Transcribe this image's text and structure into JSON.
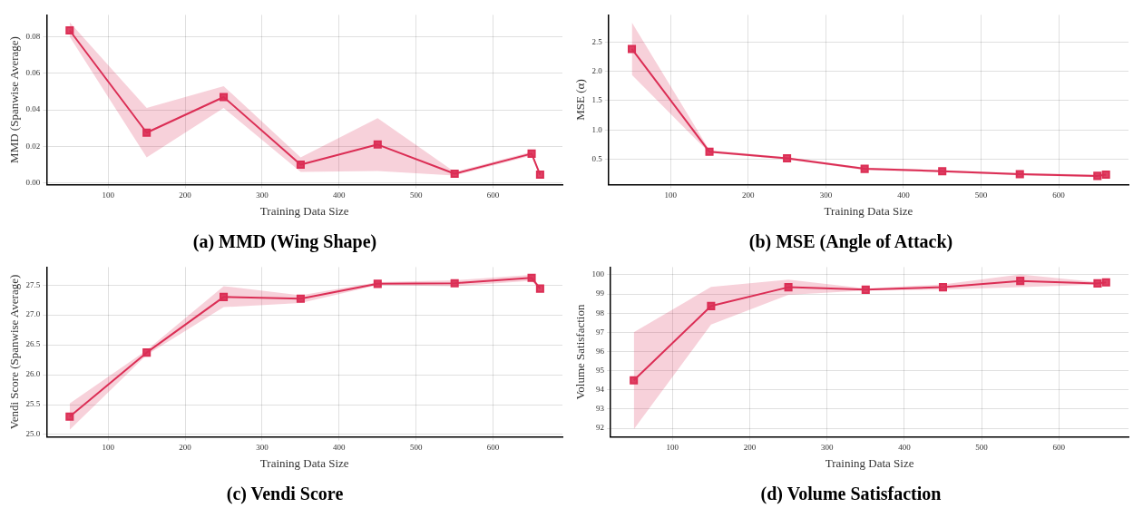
{
  "chart_data": [
    {
      "type": "line",
      "title": "(a) MMD (Wing Shape)",
      "xlabel": "Training Data Size",
      "ylabel": "MMD (Spanwise Average)",
      "x": [
        50,
        150,
        250,
        350,
        450,
        550,
        650,
        661
      ],
      "xlim": [
        20,
        690
      ],
      "xticks": [
        100,
        200,
        300,
        400,
        500,
        600
      ],
      "ylim": [
        -0.001,
        0.092
      ],
      "yticks": [
        {
          "value": 0,
          "label": "0.00"
        },
        {
          "value": 0.02,
          "label": "0.02"
        },
        {
          "value": 0.04,
          "label": "0.04"
        },
        {
          "value": 0.06,
          "label": "0.06"
        },
        {
          "value": 0.08,
          "label": "0.08"
        }
      ],
      "grid": true,
      "marker": "square",
      "line_style": "solid",
      "series": [
        {
          "color": "#dc2f55",
          "values": [
            0.0835,
            0.0275,
            0.047,
            0.01,
            0.021,
            0.005,
            0.016,
            0.0045
          ],
          "lower": [
            0.08,
            0.014,
            0.041,
            0.006,
            0.0065,
            0.004,
            0.015,
            0.004
          ],
          "upper": [
            0.088,
            0.041,
            0.053,
            0.014,
            0.0355,
            0.006,
            0.017,
            0.005
          ]
        }
      ]
    },
    {
      "type": "line",
      "title": "(b) MSE (Angle of Attack)",
      "xlabel": "Training Data Size",
      "ylabel": "MSE (α)",
      "x": [
        50,
        150,
        250,
        350,
        450,
        550,
        650,
        661
      ],
      "xlim": [
        20,
        690
      ],
      "xticks": [
        100,
        200,
        300,
        400,
        500,
        600
      ],
      "ylim": [
        0.07,
        2.96
      ],
      "yticks": [
        0.5,
        {
          "value": 1,
          "label": "1.0"
        },
        1.5,
        {
          "value": 2,
          "label": "2.0"
        },
        2.5
      ],
      "grid": true,
      "marker": "square",
      "line_style": "solid",
      "series": [
        {
          "color": "#dc2f55",
          "values": [
            2.38,
            0.63,
            0.52,
            0.34,
            0.3,
            0.25,
            0.22,
            0.24
          ],
          "lower": [
            1.94,
            0.61,
            0.5,
            0.32,
            0.28,
            0.23,
            0.2,
            0.22
          ],
          "upper": [
            2.83,
            0.66,
            0.54,
            0.36,
            0.32,
            0.27,
            0.24,
            0.26
          ]
        }
      ]
    },
    {
      "type": "line",
      "title": "(c) Vendi Score",
      "xlabel": "Training Data Size",
      "ylabel": "Vendi Score (Spanwise Average)",
      "x": [
        50,
        150,
        250,
        350,
        450,
        550,
        650,
        661
      ],
      "xlim": [
        20,
        690
      ],
      "xticks": [
        100,
        200,
        300,
        400,
        500,
        600
      ],
      "ylim": [
        24.96,
        27.8
      ],
      "yticks": [
        {
          "value": 25,
          "label": "25.0"
        },
        25.5,
        {
          "value": 26,
          "label": "26.0"
        },
        26.5,
        {
          "value": 27,
          "label": "27.0"
        },
        27.5
      ],
      "grid": true,
      "marker": "square",
      "line_style": "solid",
      "series": [
        {
          "color": "#dc2f55",
          "values": [
            25.3,
            26.37,
            27.3,
            27.27,
            27.52,
            27.53,
            27.62,
            27.44
          ],
          "lower": [
            25.08,
            26.33,
            27.13,
            27.2,
            27.5,
            27.48,
            27.57,
            27.42
          ],
          "upper": [
            25.52,
            26.41,
            27.48,
            27.33,
            27.55,
            27.58,
            27.67,
            27.46
          ]
        }
      ]
    },
    {
      "type": "line",
      "title": "(d) Volume Satisfaction",
      "xlabel": "Training Data Size",
      "ylabel": "Volume Satisfaction",
      "x": [
        50,
        150,
        250,
        350,
        450,
        550,
        650,
        661
      ],
      "xlim": [
        20,
        690
      ],
      "xticks": [
        100,
        200,
        300,
        400,
        500,
        600
      ],
      "ylim": [
        91.55,
        100.4
      ],
      "yticks": [
        92,
        93,
        94,
        95,
        96,
        97,
        98,
        99,
        100
      ],
      "grid": true,
      "marker": "square",
      "line_style": "solid",
      "series": [
        {
          "color": "#dc2f55",
          "values": [
            94.5,
            98.37,
            99.35,
            99.22,
            99.35,
            99.68,
            99.55,
            99.6
          ],
          "lower": [
            91.95,
            97.4,
            98.95,
            99.18,
            99.22,
            99.35,
            99.48,
            99.55
          ],
          "upper": [
            97.0,
            99.37,
            99.75,
            99.28,
            99.5,
            100.02,
            99.62,
            99.65
          ]
        }
      ]
    }
  ]
}
